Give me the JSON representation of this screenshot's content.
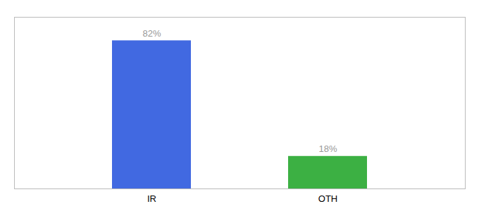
{
  "chart_data": {
    "type": "bar",
    "categories": [
      "IR",
      "OTH"
    ],
    "values": [
      82,
      18
    ],
    "value_labels": [
      "82%",
      "18%"
    ],
    "colors": [
      "#4169E1",
      "#3CB043"
    ],
    "ylim": [
      0,
      95
    ],
    "data_labels": true,
    "tick_labels": "x"
  }
}
